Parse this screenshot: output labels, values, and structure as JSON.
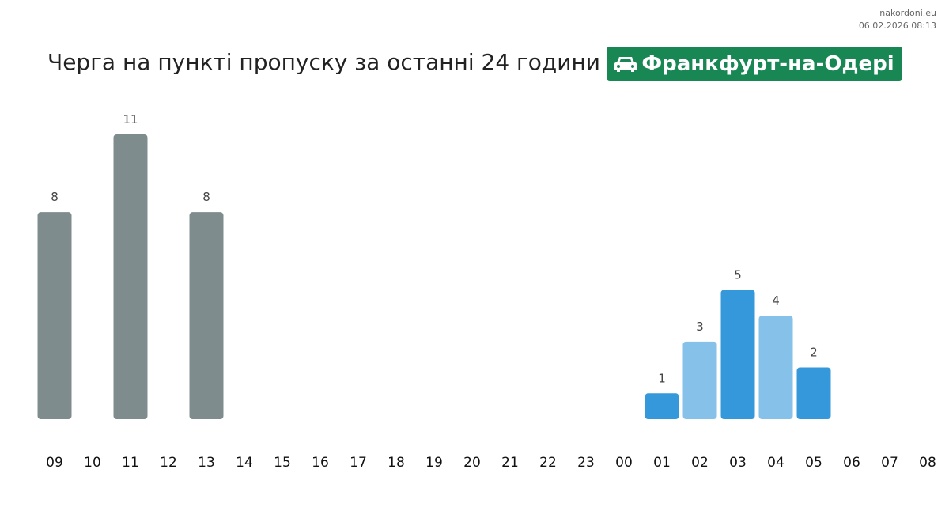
{
  "source": {
    "site": "nakordoni.eu",
    "timestamp": "06.02.2026 08:13"
  },
  "header": {
    "title": "Черга на пункті пропуску за останні 24 години",
    "checkpoint": "Франкфурт-на-Одері",
    "checkpoint_icon": "car-icon",
    "badge_color": "#198754"
  },
  "chart_data": {
    "type": "bar",
    "title": "Черга на пункті пропуску за останні 24 години",
    "categories": [
      "09",
      "10",
      "11",
      "12",
      "13",
      "14",
      "15",
      "16",
      "17",
      "18",
      "19",
      "20",
      "21",
      "22",
      "23",
      "00",
      "01",
      "02",
      "03",
      "04",
      "05",
      "06",
      "07",
      "08"
    ],
    "values": [
      8,
      null,
      11,
      null,
      8,
      null,
      null,
      null,
      null,
      null,
      null,
      null,
      null,
      null,
      null,
      null,
      1,
      3,
      5,
      4,
      2,
      null,
      null,
      null
    ],
    "colors": [
      "#7f8c8d",
      null,
      "#7f8c8d",
      null,
      "#7f8c8d",
      null,
      null,
      null,
      null,
      null,
      null,
      null,
      null,
      null,
      null,
      null,
      "#3498db",
      "#85c1e9",
      "#3498db",
      "#85c1e9",
      "#3498db",
      null,
      null,
      null
    ],
    "ylim": [
      0,
      11
    ],
    "grid": false,
    "data_labels": true
  }
}
